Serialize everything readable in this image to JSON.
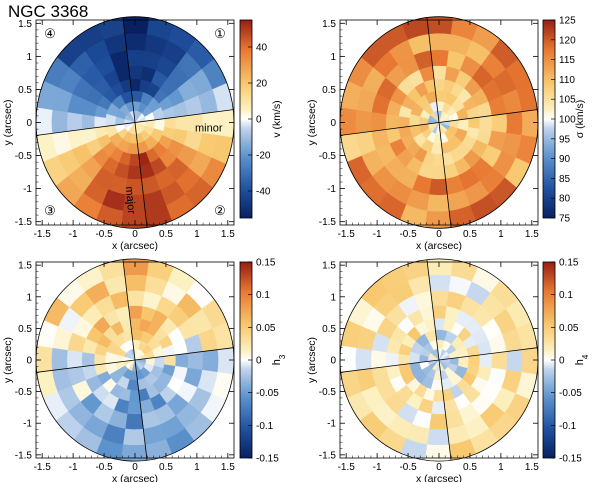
{
  "figure": {
    "title": "NGC 3368"
  },
  "chart_data": [
    {
      "type": "heatmap",
      "panel": "v",
      "xlabel": "x (arcsec)",
      "ylabel": "y (arcsec)",
      "xlim": [
        -1.6,
        1.6
      ],
      "ylim": [
        -1.55,
        1.55
      ],
      "x_ticks": [
        "-1.5",
        "-1",
        "-0.5",
        "0",
        "0.5",
        "1",
        "1.5"
      ],
      "y_ticks": [
        "-1.5",
        "-1",
        "-0.5",
        "0",
        "0.5",
        "1",
        "1.5"
      ],
      "colorbar": {
        "label": "v (km/s)",
        "range": [
          -55,
          55
        ],
        "ticks": [
          "40",
          "20",
          "0",
          "-20",
          "-40"
        ],
        "colormap": "diverging-blue-white-red"
      },
      "grid": {
        "radii_arcsec": [
          0.18,
          0.32,
          0.48,
          0.66,
          0.86,
          1.1,
          1.35,
          1.6
        ],
        "sectors_per_quadrant": 6,
        "major_axis_pa_deg": 173,
        "minor_axis_pa_deg": 83
      },
      "axis_labels": {
        "major": "major",
        "minor": "minor"
      },
      "quadrant_labels": [
        "①",
        "②",
        "③",
        "④"
      ],
      "field_description": "rotation: approaching (blue) north half, receding (red) south half, zero along minor axis",
      "field_params": {
        "kind": "rotation",
        "amplitude": 50,
        "noise": 6
      }
    },
    {
      "type": "heatmap",
      "panel": "sigma",
      "xlabel": "x (arcsec)",
      "ylabel": "y (arcsec)",
      "xlim": [
        -1.6,
        1.6
      ],
      "ylim": [
        -1.55,
        1.55
      ],
      "x_ticks": [
        "-1.5",
        "-1",
        "-0.5",
        "0",
        "0.5",
        "1",
        "1.5"
      ],
      "y_ticks": [
        "-1.5",
        "-1",
        "-0.5",
        "0",
        "0.5",
        "1",
        "1.5"
      ],
      "colorbar": {
        "label": "σ (km/s)",
        "range": [
          75,
          125
        ],
        "ticks": [
          "125",
          "120",
          "115",
          "110",
          "105",
          "100",
          "95",
          "90",
          "85",
          "80",
          "75"
        ],
        "colormap": "diverging-blue-white-red"
      },
      "field_params": {
        "kind": "sigma",
        "center": 96,
        "outer": 112,
        "noise": 6
      }
    },
    {
      "type": "heatmap",
      "panel": "h3",
      "xlabel": "x (arcsec)",
      "ylabel": "y (arcsec)",
      "xlim": [
        -1.6,
        1.6
      ],
      "ylim": [
        -1.55,
        1.55
      ],
      "x_ticks": [
        "-1.5",
        "-1",
        "-0.5",
        "0",
        "0.5",
        "1",
        "1.5"
      ],
      "y_ticks": [
        "-1.5",
        "-1",
        "-0.5",
        "0",
        "0.5",
        "1",
        "1.5"
      ],
      "colorbar": {
        "label": "h3",
        "range": [
          -0.15,
          0.15
        ],
        "ticks": [
          "0.15",
          "0.1",
          "0.05",
          "0",
          "-0.05",
          "-0.1",
          "-0.15"
        ],
        "colormap": "diverging-blue-white-red"
      },
      "field_params": {
        "kind": "h3",
        "amplitude": 0.05,
        "noise": 0.035
      }
    },
    {
      "type": "heatmap",
      "panel": "h4",
      "xlabel": "x (arcsec)",
      "ylabel": "y (arcsec)",
      "xlim": [
        -1.6,
        1.6
      ],
      "ylim": [
        -1.55,
        1.55
      ],
      "x_ticks": [
        "-1.5",
        "-1",
        "-0.5",
        "0",
        "0.5",
        "1",
        "1.5"
      ],
      "y_ticks": [
        "-1.5",
        "-1",
        "-0.5",
        "0",
        "0.5",
        "1",
        "1.5"
      ],
      "colorbar": {
        "label": "h4",
        "range": [
          -0.15,
          0.15
        ],
        "ticks": [
          "0.15",
          "0.1",
          "0.05",
          "0",
          "-0.05",
          "-0.1",
          "-0.15"
        ],
        "colormap": "diverging-blue-white-red"
      },
      "field_params": {
        "kind": "h4",
        "amplitude": 0.02,
        "noise": 0.035
      }
    }
  ]
}
